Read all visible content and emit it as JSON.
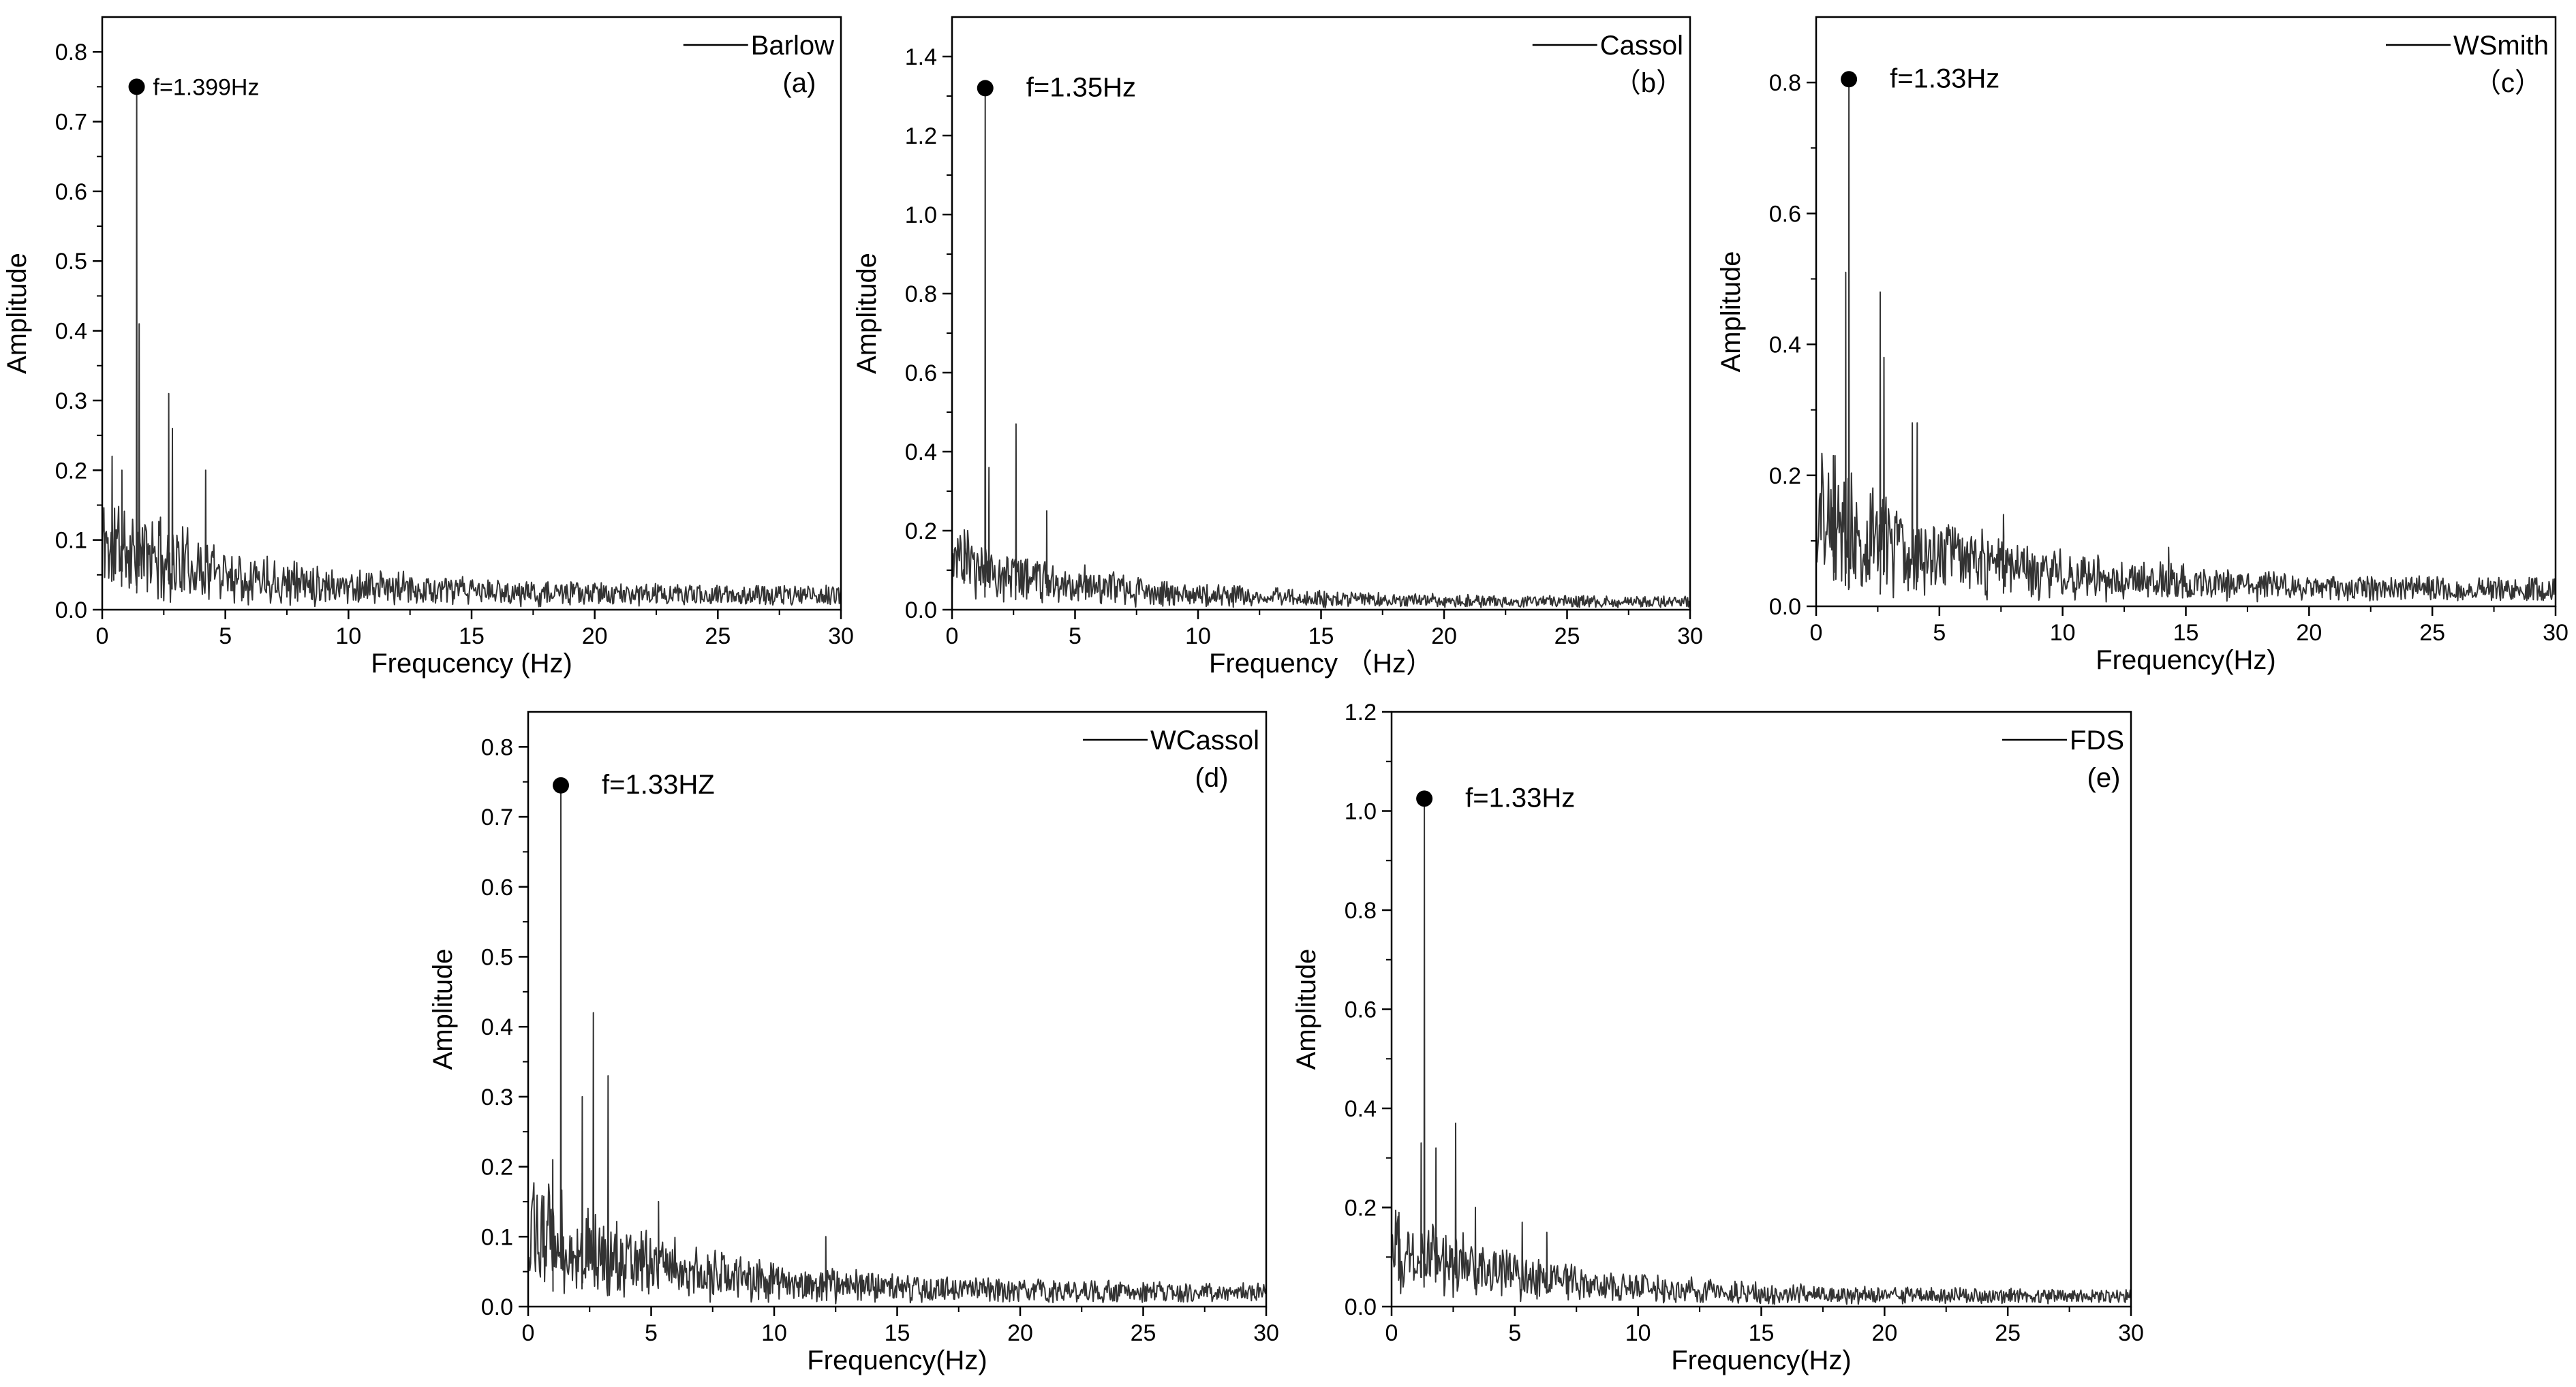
{
  "chart_data": [
    {
      "id": "a",
      "type": "line",
      "panel_label": "(a)",
      "title": "",
      "xlabel": "Frequcency (Hz)",
      "ylabel": "Amplitude",
      "xlim": [
        0,
        30
      ],
      "ylim": [
        0,
        0.85
      ],
      "xticks": [
        0,
        5,
        10,
        15,
        20,
        25,
        30
      ],
      "xtick_labels": [
        "0",
        "5",
        "10",
        "15",
        "20",
        "25",
        "30"
      ],
      "yticks": [
        0,
        0.1,
        0.2,
        0.3,
        0.4,
        0.5,
        0.6,
        0.7,
        0.8
      ],
      "ytick_labels": [
        "0.0",
        "0.1",
        "0.2",
        "0.3",
        "0.4",
        "0.5",
        "0.6",
        "0.7",
        "0.8"
      ],
      "grid": false,
      "legend": {
        "position": "top-right",
        "entries": [
          "Barlow"
        ]
      },
      "series": [
        {
          "name": "Barlow"
        }
      ],
      "peak": {
        "x": 1.399,
        "y": 0.75,
        "label": "f=1.399Hz"
      },
      "spikes": [
        [
          1.399,
          0.75
        ],
        [
          1.5,
          0.41
        ],
        [
          2.7,
          0.31
        ],
        [
          2.85,
          0.26
        ],
        [
          4.2,
          0.2
        ],
        [
          0.4,
          0.22
        ],
        [
          0.8,
          0.2
        ]
      ],
      "noise": {
        "base": 0.1,
        "end": 0.02,
        "decay": 0.17,
        "jitter": 0.05,
        "seed": 11
      }
    },
    {
      "id": "b",
      "type": "line",
      "panel_label": "（b）",
      "title": "",
      "xlabel": "Frequency （Hz）",
      "ylabel": "Amplitude",
      "xlim": [
        0,
        30
      ],
      "ylim": [
        0,
        1.5
      ],
      "xticks": [
        0,
        5,
        10,
        15,
        20,
        25,
        30
      ],
      "xtick_labels": [
        "0",
        "5",
        "10",
        "15",
        "20",
        "25",
        "30"
      ],
      "yticks": [
        0,
        0.2,
        0.4,
        0.6,
        0.8,
        1.0,
        1.2,
        1.4
      ],
      "ytick_labels": [
        "0.0",
        "0.2",
        "0.4",
        "0.6",
        "0.8",
        "1.0",
        "1.2",
        "1.4"
      ],
      "grid": false,
      "legend": {
        "position": "top-right",
        "entries": [
          "Cassol"
        ]
      },
      "series": [
        {
          "name": "Cassol"
        }
      ],
      "peak": {
        "x": 1.35,
        "y": 1.32,
        "label": "f=1.35Hz"
      },
      "spikes": [
        [
          1.35,
          1.32
        ],
        [
          1.5,
          0.36
        ],
        [
          2.6,
          0.47
        ],
        [
          3.85,
          0.25
        ],
        [
          0.5,
          0.2
        ]
      ],
      "noise": {
        "base": 0.13,
        "end": 0.02,
        "decay": 0.18,
        "jitter": 0.05,
        "seed": 23
      }
    },
    {
      "id": "c",
      "type": "line",
      "panel_label": "（c）",
      "title": "",
      "xlabel": "Frequency(Hz)",
      "ylabel": "Amplitude",
      "xlim": [
        0,
        30
      ],
      "ylim": [
        0,
        0.9
      ],
      "xticks": [
        0,
        5,
        10,
        15,
        20,
        25,
        30
      ],
      "xtick_labels": [
        "0",
        "5",
        "10",
        "15",
        "20",
        "25",
        "30"
      ],
      "yticks": [
        0,
        0.2,
        0.4,
        0.6,
        0.8
      ],
      "ytick_labels": [
        "0.0",
        "0.2",
        "0.4",
        "0.6",
        "0.8"
      ],
      "grid": false,
      "legend": {
        "position": "top-right",
        "entries": [
          "WSmith"
        ]
      },
      "series": [
        {
          "name": "WSmith"
        }
      ],
      "peak": {
        "x": 1.33,
        "y": 0.805,
        "label": "f=1.33Hz"
      },
      "spikes": [
        [
          1.33,
          0.805
        ],
        [
          1.2,
          0.51
        ],
        [
          2.6,
          0.48
        ],
        [
          2.75,
          0.38
        ],
        [
          3.9,
          0.28
        ],
        [
          4.1,
          0.28
        ],
        [
          0.7,
          0.23
        ],
        [
          7.6,
          0.14
        ],
        [
          14.3,
          0.09
        ]
      ],
      "noise": {
        "base": 0.14,
        "end": 0.025,
        "decay": 0.16,
        "jitter": 0.06,
        "seed": 37
      }
    },
    {
      "id": "d",
      "type": "line",
      "panel_label": "(d)",
      "title": "",
      "xlabel": "Frequency(Hz)",
      "ylabel": "Amplitude",
      "xlim": [
        0,
        30
      ],
      "ylim": [
        0,
        0.85
      ],
      "xticks": [
        0,
        5,
        10,
        15,
        20,
        25,
        30
      ],
      "xtick_labels": [
        "0",
        "5",
        "10",
        "15",
        "20",
        "25",
        "30"
      ],
      "yticks": [
        0,
        0.1,
        0.2,
        0.3,
        0.4,
        0.5,
        0.6,
        0.7,
        0.8
      ],
      "ytick_labels": [
        "0.0",
        "0.1",
        "0.2",
        "0.3",
        "0.4",
        "0.5",
        "0.6",
        "0.7",
        "0.8"
      ],
      "grid": false,
      "legend": {
        "position": "top-right",
        "entries": [
          "WCassol"
        ]
      },
      "series": [
        {
          "name": "WCassol"
        }
      ],
      "peak": {
        "x": 1.33,
        "y": 0.745,
        "label": "f=1.33HZ"
      },
      "spikes": [
        [
          1.33,
          0.745
        ],
        [
          2.65,
          0.42
        ],
        [
          2.2,
          0.3
        ],
        [
          3.25,
          0.33
        ],
        [
          1.0,
          0.21
        ],
        [
          5.3,
          0.15
        ],
        [
          12.1,
          0.1
        ]
      ],
      "noise": {
        "base": 0.11,
        "end": 0.02,
        "decay": 0.17,
        "jitter": 0.05,
        "seed": 53
      }
    },
    {
      "id": "e",
      "type": "line",
      "panel_label": "(e)",
      "title": "",
      "xlabel": "Frequency(Hz)",
      "ylabel": "Amplitude",
      "xlim": [
        0,
        30
      ],
      "ylim": [
        0,
        1.2
      ],
      "xticks": [
        0,
        5,
        10,
        15,
        20,
        25,
        30
      ],
      "xtick_labels": [
        "0",
        "5",
        "10",
        "15",
        "20",
        "25",
        "30"
      ],
      "yticks": [
        0,
        0.2,
        0.4,
        0.6,
        0.8,
        1.0,
        1.2
      ],
      "ytick_labels": [
        "0.0",
        "0.2",
        "0.4",
        "0.6",
        "0.8",
        "1.0",
        "1.2"
      ],
      "grid": false,
      "legend": {
        "position": "top-right",
        "entries": [
          "FDS"
        ]
      },
      "series": [
        {
          "name": "FDS"
        }
      ],
      "peak": {
        "x": 1.33,
        "y": 1.025,
        "label": "f=1.33Hz"
      },
      "spikes": [
        [
          1.33,
          1.025
        ],
        [
          1.2,
          0.33
        ],
        [
          1.8,
          0.32
        ],
        [
          2.6,
          0.37
        ],
        [
          3.4,
          0.2
        ],
        [
          5.3,
          0.17
        ],
        [
          6.3,
          0.15
        ],
        [
          0.3,
          0.19
        ]
      ],
      "noise": {
        "base": 0.12,
        "end": 0.02,
        "decay": 0.17,
        "jitter": 0.05,
        "seed": 71
      }
    }
  ]
}
